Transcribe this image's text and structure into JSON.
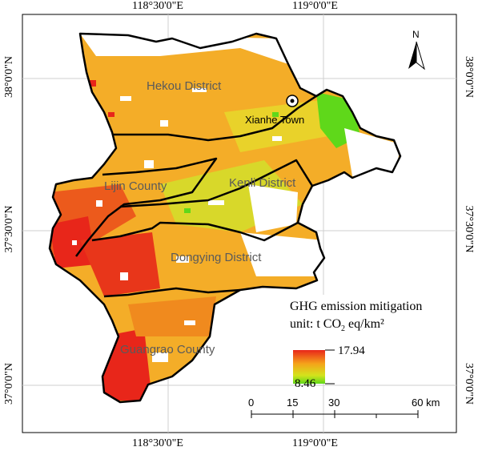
{
  "coords": {
    "top": [
      "118°30'0\"E",
      "119°0'0\"E"
    ],
    "bottom": [
      "118°30'0\"E",
      "119°0'0\"E"
    ],
    "left": [
      "38°0'0\"N",
      "37°30'0\"N",
      "37°0'0\"N"
    ],
    "right": [
      "38°0'0\"N",
      "37°30'0\"N",
      "37°0'0\"N"
    ]
  },
  "regions": {
    "hekou": "Hekou District",
    "lijin": "Lijin County",
    "kenli": "Kenli District",
    "dongying": "Dongying District",
    "guangrao": "Guangrao County"
  },
  "town": "Xianhe Town",
  "north": "N",
  "legend": {
    "title": "GHG emission mitigation",
    "unit_prefix": "unit: t CO",
    "unit_sub": "2",
    "unit_suffix": " eq/km²",
    "max": "17.94",
    "min": "8.46",
    "colors": [
      "#e8261a",
      "#f5a21a",
      "#d4e31c",
      "#5fd81a"
    ]
  },
  "scale": {
    "ticks": [
      "0",
      "15",
      "30",
      "60 km"
    ]
  }
}
